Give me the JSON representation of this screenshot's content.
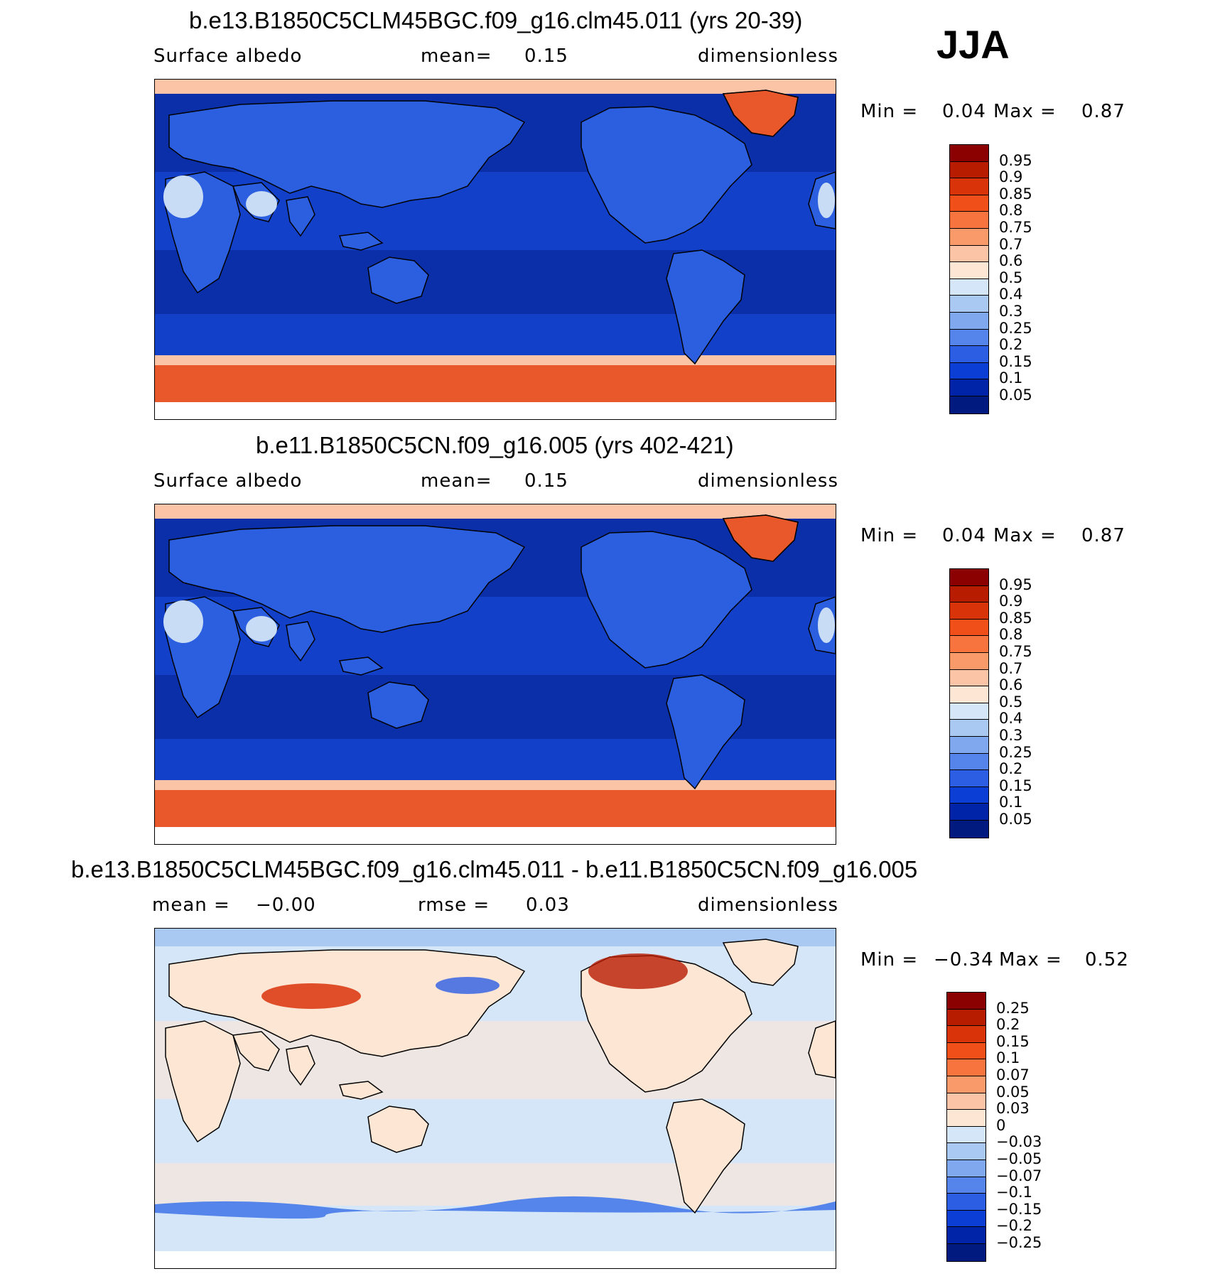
{
  "season": "JJA",
  "panels": [
    {
      "title": "b.e13.B1850C5CLM45BGC.f09_g16.clm45.011 (yrs 20-39)",
      "left_label": "Surface  albedo",
      "middle_label": "mean=",
      "middle_value": "0.15",
      "units": "dimensionless",
      "min_label": "Min  =",
      "min_value": "0.04",
      "max_label": "Max  =",
      "max_value": "0.87",
      "colorbar": {
        "labels": [
          "0.95",
          "0.9",
          "0.85",
          "0.8",
          "0.75",
          "0.7",
          "0.6",
          "0.5",
          "0.4",
          "0.3",
          "0.25",
          "0.2",
          "0.15",
          "0.1",
          "0.05"
        ],
        "colors": [
          "#8b0000",
          "#b71c00",
          "#d9330a",
          "#f04f1a",
          "#f7743e",
          "#f99a6b",
          "#fbc4a6",
          "#fde6d4",
          "#d4e6f7",
          "#a9c8f2",
          "#7fa8ee",
          "#5585ea",
          "#2c5ee3",
          "#0a3ed4",
          "#0024a8",
          "#001a80"
        ]
      },
      "map_colors": {
        "ocean": "#0a2fa8",
        "ocean_mid": "#1240c8",
        "land": "#2b5fe0",
        "ice": "#e8582a",
        "ice_edge": "#fbc4a6",
        "desert": "#c9dcf5"
      }
    },
    {
      "title": "b.e11.B1850C5CN.f09_g16.005 (yrs 402-421)",
      "left_label": "Surface  albedo",
      "middle_label": "mean=",
      "middle_value": "0.15",
      "units": "dimensionless",
      "min_label": "Min  =",
      "min_value": "0.04",
      "max_label": "Max  =",
      "max_value": "0.87",
      "colorbar": {
        "labels": [
          "0.95",
          "0.9",
          "0.85",
          "0.8",
          "0.75",
          "0.7",
          "0.6",
          "0.5",
          "0.4",
          "0.3",
          "0.25",
          "0.2",
          "0.15",
          "0.1",
          "0.05"
        ],
        "colors": [
          "#8b0000",
          "#b71c00",
          "#d9330a",
          "#f04f1a",
          "#f7743e",
          "#f99a6b",
          "#fbc4a6",
          "#fde6d4",
          "#d4e6f7",
          "#a9c8f2",
          "#7fa8ee",
          "#5585ea",
          "#2c5ee3",
          "#0a3ed4",
          "#0024a8",
          "#001a80"
        ]
      },
      "map_colors": {
        "ocean": "#0a2fa8",
        "ocean_mid": "#1240c8",
        "land": "#2b5fe0",
        "ice": "#e8582a",
        "ice_edge": "#fbc4a6",
        "desert": "#c9dcf5"
      }
    },
    {
      "title": "b.e13.B1850C5CLM45BGC.f09_g16.clm45.011 - b.e11.B1850C5CN.f09_g16.005",
      "left_label": "mean  =",
      "left_value": "−0.00",
      "middle_label": "rmse  =",
      "middle_value": "0.03",
      "units": "dimensionless",
      "min_label": "Min  =",
      "min_value": "−0.34",
      "max_label": "Max  =",
      "max_value": "0.52",
      "colorbar": {
        "labels": [
          "0.25",
          "0.2",
          "0.15",
          "0.1",
          "0.07",
          "0.05",
          "0.03",
          "0",
          "−0.03",
          "−0.05",
          "−0.07",
          "−0.1",
          "−0.15",
          "−0.2",
          "−0.25"
        ],
        "colors": [
          "#8b0000",
          "#b71c00",
          "#d9330a",
          "#f04f1a",
          "#f7743e",
          "#f99a6b",
          "#fbc4a6",
          "#fde6d4",
          "#d4e6f7",
          "#a9c8f2",
          "#7fa8ee",
          "#5585ea",
          "#2c5ee3",
          "#0a3ed4",
          "#0024a8",
          "#001a80"
        ]
      },
      "map_colors": {
        "ocean": "#d4e6f7",
        "ocean_mid": "#fde6d4",
        "land": "#fde6d4",
        "ice": "#5585ea",
        "ice_edge": "#a9c8f2",
        "desert": "#d4e6f7"
      }
    }
  ]
}
